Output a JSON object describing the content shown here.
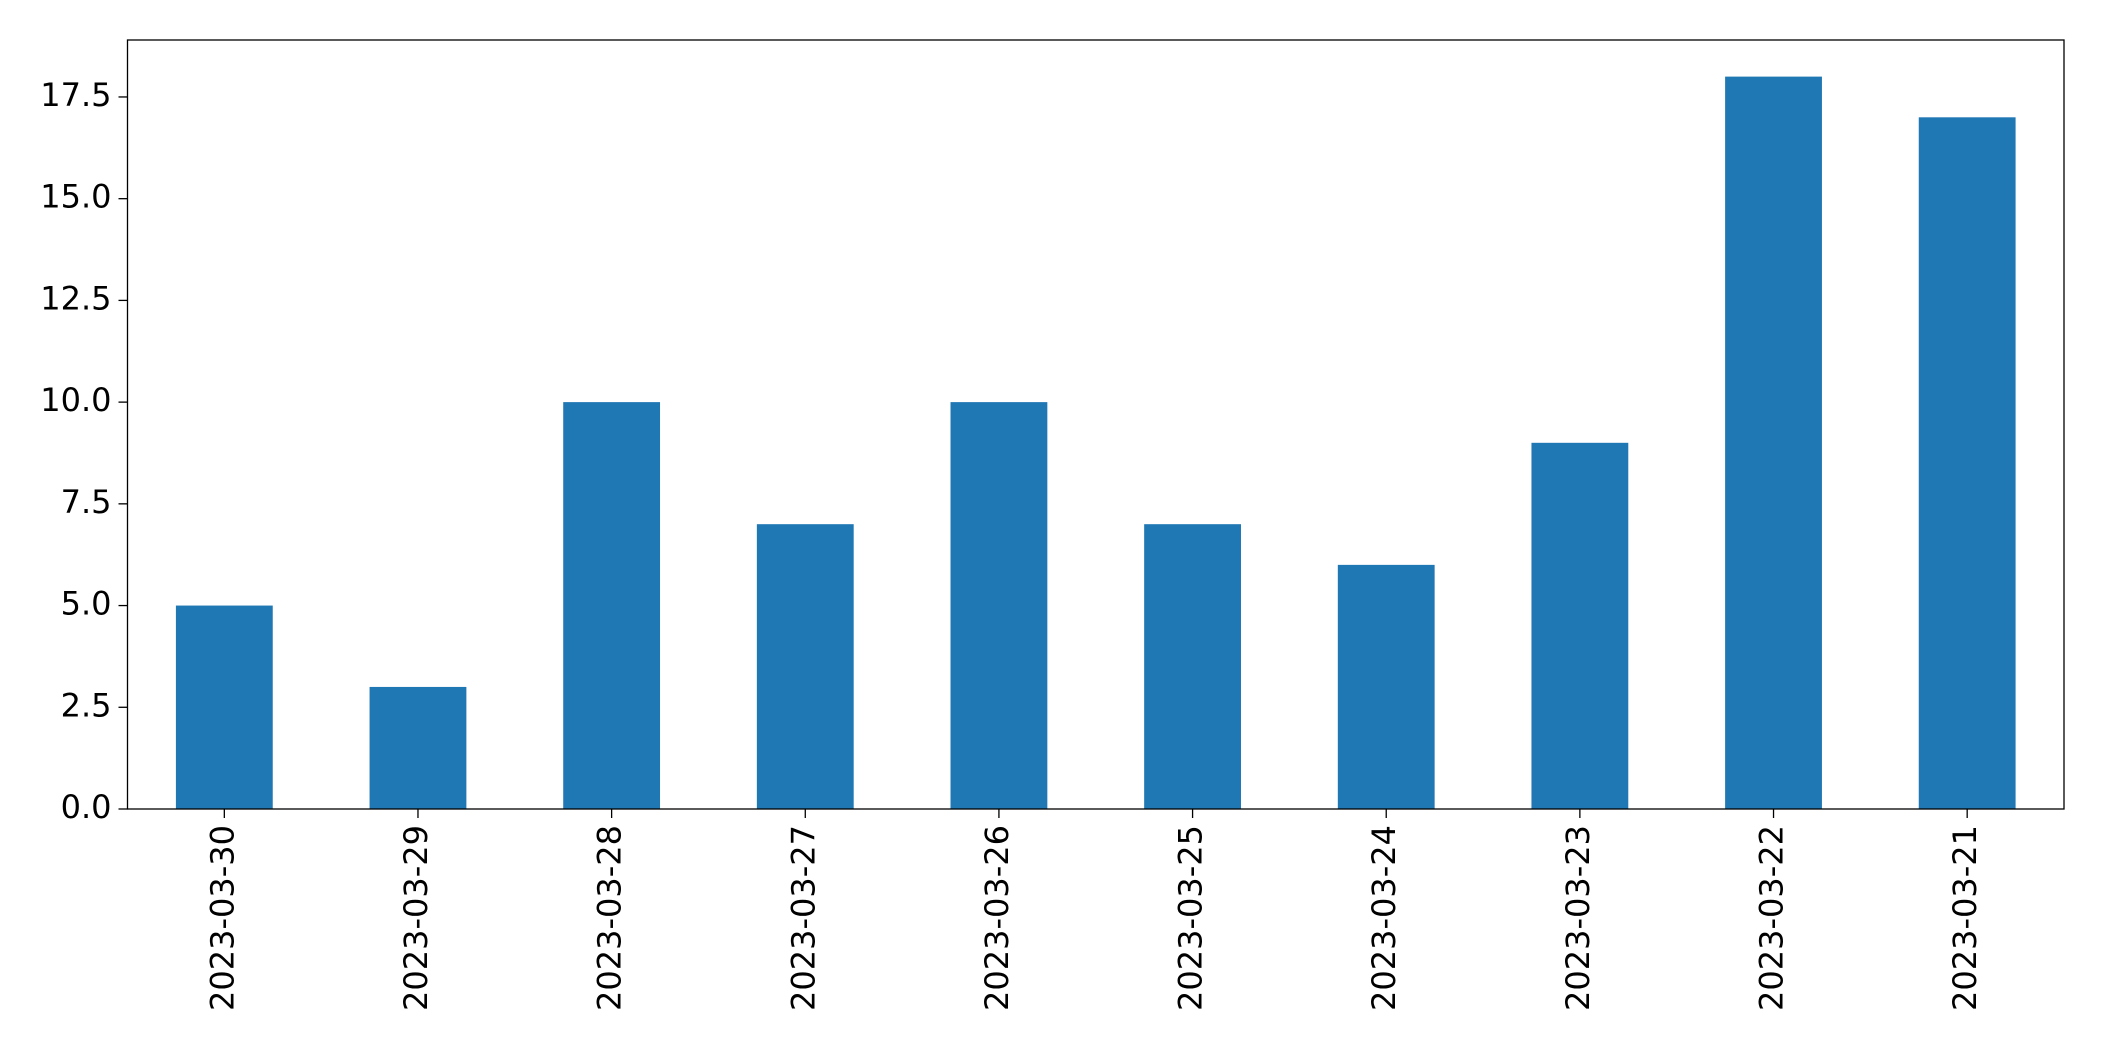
{
  "chart_data": {
    "type": "bar",
    "categories": [
      "2023-03-30",
      "2023-03-29",
      "2023-03-28",
      "2023-03-27",
      "2023-03-26",
      "2023-03-25",
      "2023-03-24",
      "2023-03-23",
      "2023-03-22",
      "2023-03-21"
    ],
    "values": [
      5,
      3,
      10,
      7,
      10,
      7,
      6,
      9,
      18,
      17
    ],
    "color": "#1f77b4",
    "ylim": [
      0,
      18.9
    ],
    "yticks": [
      {
        "value": 0,
        "label": "0.0"
      },
      2.5,
      {
        "value": 5,
        "label": "5.0"
      },
      7.5,
      {
        "value": 10,
        "label": "10.0"
      },
      12.5,
      {
        "value": 15,
        "label": "15.0"
      },
      17.5
    ],
    "grid": false
  }
}
